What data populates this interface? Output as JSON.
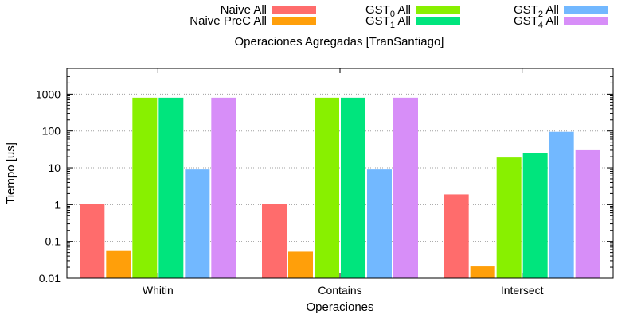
{
  "chart_data": {
    "type": "bar",
    "title": "Operaciones Agregadas [TranSantiago]",
    "xlabel": "Operaciones",
    "ylabel": "Tiempo [us]",
    "yscale": "log",
    "ylim": [
      0.01,
      5000
    ],
    "yticks": [
      0.01,
      0.1,
      1,
      10,
      100,
      1000
    ],
    "ytick_labels": [
      "0.01",
      "0.1",
      "1",
      "10",
      "100",
      "1000"
    ],
    "grid": "y-dashed",
    "legend_position": "top",
    "categories": [
      "Whitin",
      "Contains",
      "Intersect"
    ],
    "series": [
      {
        "name": "Naive All",
        "label_main": "Naive All",
        "label_sub": "",
        "label_tail": "",
        "color": "#ff6c6c",
        "values": [
          1.05,
          1.05,
          1.9
        ]
      },
      {
        "name": "Naive PreC All",
        "label_main": "Naive PreC All",
        "label_sub": "",
        "label_tail": "",
        "color": "#ff9f0a",
        "values": [
          0.055,
          0.053,
          0.021
        ]
      },
      {
        "name": "GST0 All",
        "label_main": "GST",
        "label_sub": "0",
        "label_tail": " All",
        "color": "#88f000",
        "values": [
          800,
          800,
          19
        ]
      },
      {
        "name": "GST1 All",
        "label_main": "GST",
        "label_sub": "1",
        "label_tail": " All",
        "color": "#00e57d",
        "values": [
          800,
          800,
          25
        ]
      },
      {
        "name": "GST2 All",
        "label_main": "GST",
        "label_sub": "2",
        "label_tail": " All",
        "color": "#72b8ff",
        "values": [
          9,
          9,
          95
        ]
      },
      {
        "name": "GST4 All",
        "label_main": "GST",
        "label_sub": "4",
        "label_tail": " All",
        "color": "#d78ef8",
        "values": [
          800,
          800,
          30
        ]
      }
    ]
  }
}
